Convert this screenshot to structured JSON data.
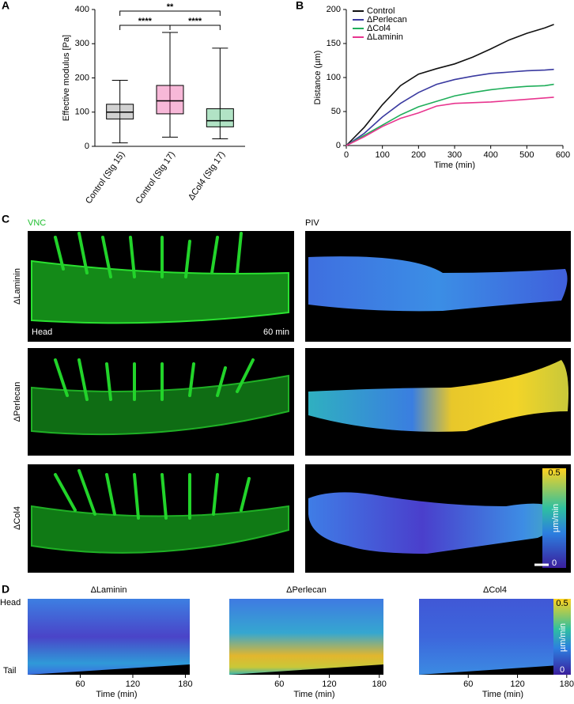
{
  "chart_data": [
    {
      "type": "box",
      "panel_label": "A",
      "ylabel": "Effective modulus [Pa]",
      "categories": [
        "Control (Stg 15)",
        "Control (Stg 17)",
        "ΔCol4 (Stg 17)"
      ],
      "boxes": [
        {
          "min": 10,
          "q1": 80,
          "median": 100,
          "q3": 123,
          "max": 193,
          "color": "#7a7a7a"
        },
        {
          "min": 27,
          "q1": 95,
          "median": 133,
          "q3": 178,
          "max": 333,
          "color": "#e8358f"
        },
        {
          "min": 22,
          "q1": 57,
          "median": 75,
          "q3": 110,
          "max": 287,
          "color": "#1fae5a"
        }
      ],
      "annotations": [
        "****",
        "**",
        "****"
      ],
      "ylim": [
        0,
        400
      ],
      "yticks": [
        0,
        100,
        200,
        300,
        400
      ]
    },
    {
      "type": "line",
      "panel_label": "B",
      "xlabel": "Time (min)",
      "ylabel": "Distance (µm)",
      "x": [
        0,
        50,
        100,
        150,
        200,
        250,
        300,
        350,
        400,
        450,
        500,
        550,
        575
      ],
      "series": [
        {
          "name": "Control",
          "color": "#111111",
          "values": [
            0,
            27,
            60,
            88,
            105,
            113,
            120,
            130,
            142,
            155,
            165,
            173,
            178
          ]
        },
        {
          "name": "ΔPerlecan",
          "color": "#3a3aa0",
          "values": [
            0,
            18,
            42,
            62,
            78,
            90,
            97,
            102,
            106,
            108,
            110,
            111,
            112
          ]
        },
        {
          "name": "ΔCol4",
          "color": "#1fae5a",
          "values": [
            0,
            15,
            30,
            45,
            57,
            65,
            73,
            78,
            82,
            85,
            87,
            88,
            90
          ]
        },
        {
          "name": "ΔLaminin",
          "color": "#e8358f",
          "values": [
            0,
            13,
            28,
            40,
            48,
            58,
            62,
            63,
            64,
            66,
            68,
            70,
            71
          ]
        }
      ],
      "xlim": [
        0,
        600
      ],
      "xticks": [
        0,
        100,
        200,
        300,
        400,
        500,
        600
      ],
      "ylim": [
        0,
        200
      ],
      "yticks": [
        0,
        50,
        100,
        150,
        200
      ],
      "legend": "upper left"
    }
  ],
  "panel_c": {
    "label": "C",
    "left_title": "VNC",
    "right_title": "PIV",
    "rows": [
      "ΔLaminin",
      "ΔPerlecan",
      "ΔCol4"
    ],
    "head": "Head",
    "time": "60 min",
    "colorbar": {
      "max": "0.5",
      "unit": "µm/min",
      "min": "0"
    }
  },
  "panel_d": {
    "label": "D",
    "titles": [
      "ΔLaminin",
      "ΔPerlecan",
      "ΔCol4"
    ],
    "head": "Head",
    "tail": "Tail",
    "xlabel": "Time (min)",
    "xlim": [
      0,
      185
    ],
    "xticks": [
      60,
      120,
      180
    ],
    "colorbar": {
      "max": "0.5",
      "unit": "µm/min",
      "min": "0"
    }
  }
}
